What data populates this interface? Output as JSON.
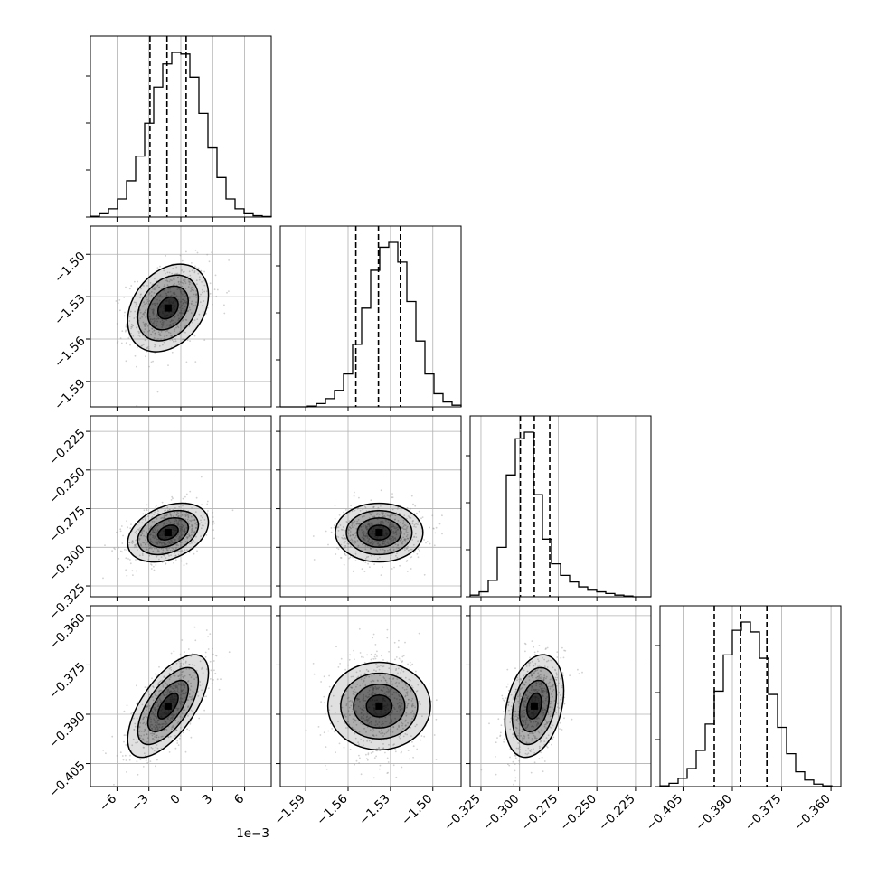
{
  "chart_data": {
    "type": "corner",
    "params": [
      {
        "range": [
          -0.0085,
          0.0085
        ],
        "ticks": [
          -0.006,
          -0.003,
          0,
          0.003,
          0.006
        ],
        "tick_labels": [
          "−6",
          "−3",
          "0",
          "3",
          "6"
        ],
        "offset_label": "1e−3",
        "quantiles": [
          -0.0029,
          -0.0013,
          0.0005
        ],
        "mean": -0.0012,
        "sd": 0.0019,
        "hist": [
          0.005,
          0.02,
          0.05,
          0.11,
          0.22,
          0.37,
          0.57,
          0.79,
          0.93,
          1.0,
          0.99,
          0.85,
          0.63,
          0.42,
          0.24,
          0.11,
          0.05,
          0.02,
          0.008,
          0.003
        ]
      },
      {
        "range": [
          -1.608,
          -1.48
        ],
        "ticks": [
          -1.59,
          -1.56,
          -1.53,
          -1.5
        ],
        "tick_labels": [
          "−1.59",
          "−1.56",
          "−1.53",
          "−1.50"
        ],
        "quantiles": [
          -1.5545,
          -1.5385,
          -1.523
        ],
        "mean": -1.538,
        "sd": 0.0155,
        "hist": [
          0.0,
          0.0,
          0.0,
          0.005,
          0.02,
          0.05,
          0.1,
          0.2,
          0.38,
          0.6,
          0.83,
          0.97,
          1.0,
          0.88,
          0.64,
          0.4,
          0.2,
          0.08,
          0.03,
          0.01
        ]
      },
      {
        "range": [
          -0.332,
          -0.215
        ],
        "ticks": [
          -0.325,
          -0.3,
          -0.275,
          -0.25,
          -0.225
        ],
        "tick_labels": [
          "−0.325",
          "−0.300",
          "−0.275",
          "−0.250",
          "−0.225"
        ],
        "quantiles": [
          -0.2995,
          -0.2905,
          -0.2805
        ],
        "mean": -0.2905,
        "sd": 0.0095,
        "hist": [
          0.01,
          0.03,
          0.1,
          0.3,
          0.74,
          0.96,
          1.0,
          0.62,
          0.35,
          0.2,
          0.13,
          0.09,
          0.06,
          0.04,
          0.03,
          0.02,
          0.01,
          0.005,
          0.0,
          0.0
        ]
      },
      {
        "range": [
          -0.412,
          -0.357
        ],
        "ticks": [
          -0.405,
          -0.39,
          -0.375,
          -0.36
        ],
        "tick_labels": [
          "−0.405",
          "−0.390",
          "−0.375",
          "−0.360"
        ],
        "quantiles": [
          -0.3955,
          -0.3875,
          -0.3795
        ],
        "mean": -0.3875,
        "sd": 0.0078,
        "hist": [
          0.005,
          0.02,
          0.05,
          0.11,
          0.22,
          0.38,
          0.58,
          0.8,
          0.95,
          1.0,
          0.94,
          0.78,
          0.56,
          0.36,
          0.2,
          0.09,
          0.04,
          0.015,
          0.005,
          0.0
        ]
      }
    ],
    "correlations": {
      "1-0": 0.3,
      "2-0": 0.35,
      "2-1": 0.0,
      "3-0": 0.65,
      "3-1": 0.0,
      "3-2": 0.3
    },
    "contour_sigma_levels": [
      0.5,
      1.0,
      1.5,
      2.0
    ],
    "scatter_points_per_panel": 700,
    "grid": true,
    "colors": {
      "line": "#000000",
      "points": "#9a9a9a",
      "grid": "#b0b0b0"
    }
  }
}
